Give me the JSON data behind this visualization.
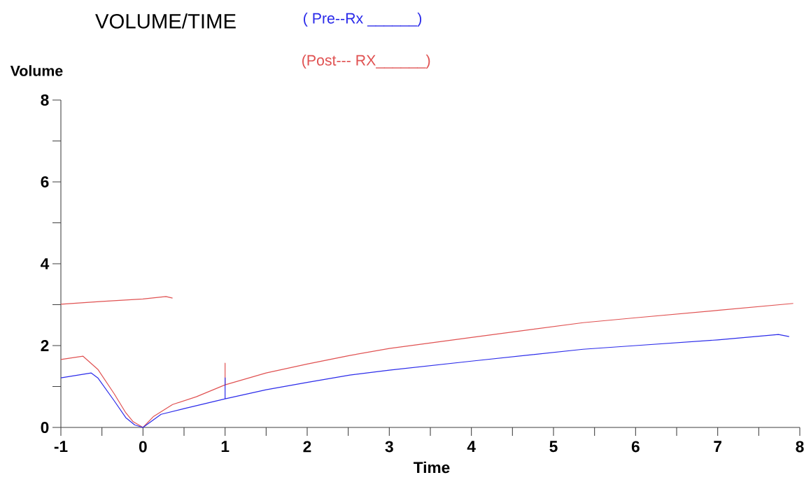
{
  "chart_data": {
    "type": "line",
    "title": "VOLUME/TIME",
    "xlabel": "Time",
    "ylabel": "Volume",
    "xlim": [
      -1,
      8
    ],
    "ylim": [
      0,
      8
    ],
    "xticks": [
      -1,
      {
        "value": -0.5,
        "label": null
      },
      0,
      {
        "value": 0.5,
        "label": null
      },
      1,
      {
        "value": 1.5,
        "label": null
      },
      2,
      {
        "value": 2.5,
        "label": null
      },
      3,
      {
        "value": 3.5,
        "label": null
      },
      4,
      {
        "value": 4.5,
        "label": null
      },
      5,
      {
        "value": 5.5,
        "label": null
      },
      6,
      {
        "value": 6.5,
        "label": null
      },
      7,
      {
        "value": 7.5,
        "label": null
      },
      8
    ],
    "yticks": [
      0,
      {
        "value": 1,
        "label": null
      },
      2,
      {
        "value": 3,
        "label": null
      },
      4,
      {
        "value": 5,
        "label": null
      },
      6,
      {
        "value": 7,
        "label": null
      },
      8
    ],
    "legend": "top",
    "series": [
      {
        "name": "( Pre--Rx ______)",
        "color": "#2b2bea",
        "x": [
          -1,
          -0.63,
          -0.55,
          -0.35,
          -0.21,
          -0.1,
          0,
          0.22,
          0.5,
          1,
          1,
          1,
          1.5,
          2,
          2.52,
          3,
          4,
          5.36,
          6,
          7,
          7.74,
          7.87
        ],
        "values": [
          1.21,
          1.33,
          1.21,
          0.65,
          0.24,
          0.06,
          0,
          0.32,
          0.46,
          0.7,
          1.21,
          0.7,
          0.92,
          1.1,
          1.28,
          1.4,
          1.62,
          1.91,
          2.0,
          2.14,
          2.27,
          2.22
        ]
      },
      {
        "name": "(Post--- RX______)",
        "color": "#e05252",
        "x": [
          -1,
          -0.5,
          0,
          0.28,
          0.36,
          null,
          -1,
          -0.73,
          -0.55,
          -0.35,
          -0.21,
          -0.12,
          0,
          0.13,
          0.36,
          0.65,
          1,
          1,
          1,
          1.5,
          2,
          2.52,
          3,
          4,
          5.36,
          6,
          7,
          7.92
        ],
        "values": [
          3.01,
          3.08,
          3.14,
          3.2,
          3.16,
          null,
          1.66,
          1.74,
          1.42,
          0.82,
          0.36,
          0.14,
          0,
          0.27,
          0.56,
          0.75,
          1.04,
          1.57,
          1.04,
          1.33,
          1.55,
          1.76,
          1.93,
          2.2,
          2.56,
          2.68,
          2.86,
          3.03
        ]
      }
    ]
  }
}
